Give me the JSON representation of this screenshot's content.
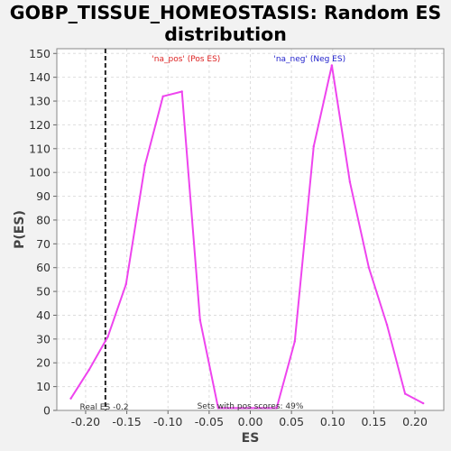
{
  "chart_data": {
    "type": "line",
    "title_lines": [
      "GOBP_TISSUE_HOMEOSTASIS: Random ES",
      "distribution"
    ],
    "xlabel": "ES",
    "ylabel": "P(ES)",
    "xlim": [
      -0.235,
      0.235
    ],
    "ylim": [
      0,
      152
    ],
    "x_ticks": [
      -0.2,
      -0.15,
      -0.1,
      -0.05,
      0.0,
      0.05,
      0.1,
      0.15,
      0.2
    ],
    "x_tick_labels": [
      "-0.20",
      "-0.15",
      "-0.10",
      "-0.05",
      "0.00",
      "0.05",
      "0.10",
      "0.15",
      "0.20"
    ],
    "y_ticks": [
      0,
      10,
      20,
      30,
      40,
      50,
      60,
      70,
      80,
      90,
      100,
      110,
      120,
      130,
      140,
      150
    ],
    "y_tick_labels": [
      "0",
      "10",
      "20",
      "30",
      "40",
      "50",
      "60",
      "70",
      "80",
      "90",
      "100",
      "110",
      "120",
      "130",
      "140",
      "150"
    ],
    "grid": true,
    "series": [
      {
        "name": "random-es-distribution",
        "color": "#ee44ee",
        "x": [
          -0.218,
          -0.196,
          -0.173,
          -0.151,
          -0.128,
          -0.106,
          -0.083,
          -0.061,
          -0.039,
          0.032,
          0.054,
          0.077,
          0.099,
          0.121,
          0.144,
          0.166,
          0.188,
          0.21
        ],
        "y": [
          5,
          17,
          31,
          53,
          103,
          132,
          134,
          38,
          1,
          1,
          29,
          111,
          145,
          96,
          60,
          36,
          7,
          3
        ]
      }
    ],
    "real_es": -0.176,
    "real_es_label": "Real ES -0.2",
    "pos_label": "'na_pos' (Pos ES)",
    "neg_label": "'na_neg' (Neg ES)",
    "pos_color": "#dd2222",
    "neg_color": "#2222cc",
    "footnote": "Sets with pos scores: 49%"
  }
}
